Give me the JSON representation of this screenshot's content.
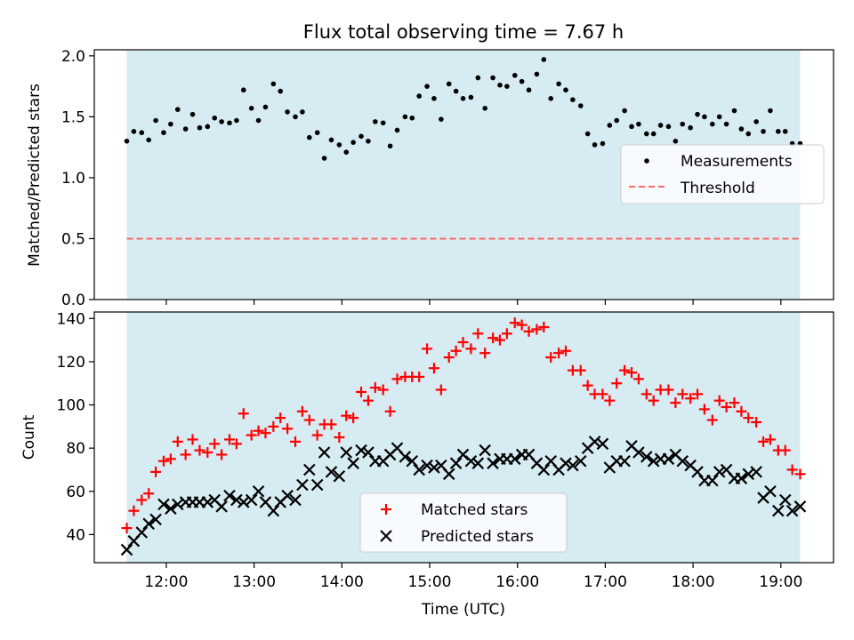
{
  "title": "Flux total observing time = 7.67 h",
  "colors": {
    "band": "#add8e6",
    "measurements": "#000000",
    "threshold": "#ff6666",
    "matched": "#ff0000",
    "predicted": "#000000"
  },
  "x_ticks": [
    "12:00",
    "13:00",
    "14:00",
    "15:00",
    "16:00",
    "17:00",
    "18:00",
    "19:00"
  ],
  "xlabel": "Time (UTC)",
  "chart_data": [
    {
      "type": "scatter",
      "ylabel": "Matched/Predicted stars",
      "xlim_hours": [
        11.18,
        19.6
      ],
      "ylim": [
        0,
        2.05
      ],
      "y_ticks": [
        "0.0",
        "0.5",
        "1.0",
        "1.5",
        "2.0"
      ],
      "legend_position": "right",
      "observing_band_hours": [
        11.55,
        19.22
      ],
      "threshold": 0.5,
      "series": [
        {
          "name": "Measurements",
          "marker": "dot",
          "x": [
            11.55,
            11.63,
            11.72,
            11.8,
            11.88,
            11.97,
            12.05,
            12.13,
            12.22,
            12.3,
            12.38,
            12.47,
            12.55,
            12.63,
            12.72,
            12.8,
            12.88,
            12.97,
            13.05,
            13.13,
            13.22,
            13.3,
            13.38,
            13.47,
            13.55,
            13.63,
            13.72,
            13.8,
            13.88,
            13.97,
            14.05,
            14.13,
            14.22,
            14.3,
            14.38,
            14.47,
            14.55,
            14.63,
            14.72,
            14.8,
            14.88,
            14.97,
            15.05,
            15.13,
            15.22,
            15.3,
            15.38,
            15.47,
            15.55,
            15.63,
            15.72,
            15.8,
            15.88,
            15.97,
            16.05,
            16.13,
            16.22,
            16.3,
            16.38,
            16.47,
            16.55,
            16.63,
            16.72,
            16.8,
            16.88,
            16.97,
            17.05,
            17.13,
            17.22,
            17.3,
            17.38,
            17.47,
            17.55,
            17.63,
            17.72,
            17.8,
            17.88,
            17.97,
            18.05,
            18.13,
            18.22,
            18.3,
            18.38,
            18.47,
            18.55,
            18.63,
            18.72,
            18.8,
            18.88,
            18.97,
            19.05,
            19.13,
            19.22
          ],
          "y": [
            1.3,
            1.38,
            1.37,
            1.31,
            1.47,
            1.37,
            1.44,
            1.56,
            1.4,
            1.52,
            1.41,
            1.42,
            1.49,
            1.46,
            1.45,
            1.47,
            1.72,
            1.57,
            1.47,
            1.58,
            1.77,
            1.71,
            1.54,
            1.5,
            1.54,
            1.33,
            1.37,
            1.16,
            1.31,
            1.27,
            1.21,
            1.29,
            1.34,
            1.3,
            1.46,
            1.45,
            1.26,
            1.39,
            1.5,
            1.49,
            1.67,
            1.75,
            1.65,
            1.48,
            1.77,
            1.71,
            1.65,
            1.66,
            1.82,
            1.57,
            1.82,
            1.76,
            1.75,
            1.84,
            1.79,
            1.72,
            1.85,
            1.97,
            1.65,
            1.77,
            1.72,
            1.64,
            1.59,
            1.36,
            1.27,
            1.28,
            1.43,
            1.47,
            1.55,
            1.42,
            1.44,
            1.36,
            1.36,
            1.43,
            1.42,
            1.3,
            1.44,
            1.41,
            1.52,
            1.5,
            1.44,
            1.5,
            1.44,
            1.55,
            1.4,
            1.36,
            1.46,
            1.38,
            1.55,
            1.38,
            1.38,
            1.28,
            1.28
          ]
        },
        {
          "name": "Threshold",
          "style": "dashed"
        }
      ]
    },
    {
      "type": "scatter",
      "ylabel": "Count",
      "xlim_hours": [
        11.18,
        19.6
      ],
      "ylim": [
        27,
        143
      ],
      "y_ticks": [
        "40",
        "60",
        "80",
        "100",
        "120",
        "140"
      ],
      "legend_position": "bottom-center",
      "observing_band_hours": [
        11.55,
        19.22
      ],
      "series": [
        {
          "name": "Matched stars",
          "marker": "plus",
          "x": [
            11.55,
            11.63,
            11.72,
            11.8,
            11.88,
            11.97,
            12.05,
            12.13,
            12.22,
            12.3,
            12.38,
            12.47,
            12.55,
            12.63,
            12.72,
            12.8,
            12.88,
            12.97,
            13.05,
            13.13,
            13.22,
            13.3,
            13.38,
            13.47,
            13.55,
            13.63,
            13.72,
            13.8,
            13.88,
            13.97,
            14.05,
            14.13,
            14.22,
            14.3,
            14.38,
            14.47,
            14.55,
            14.63,
            14.72,
            14.8,
            14.88,
            14.97,
            15.05,
            15.13,
            15.22,
            15.3,
            15.38,
            15.47,
            15.55,
            15.63,
            15.72,
            15.8,
            15.88,
            15.97,
            16.05,
            16.13,
            16.22,
            16.3,
            16.38,
            16.47,
            16.55,
            16.63,
            16.72,
            16.8,
            16.88,
            16.97,
            17.05,
            17.13,
            17.22,
            17.3,
            17.38,
            17.47,
            17.55,
            17.63,
            17.72,
            17.8,
            17.88,
            17.97,
            18.05,
            18.13,
            18.22,
            18.3,
            18.38,
            18.47,
            18.55,
            18.63,
            18.72,
            18.8,
            18.88,
            18.97,
            19.05,
            19.13,
            19.22
          ],
          "y": [
            43,
            51,
            56,
            59,
            69,
            74,
            75,
            83,
            77,
            84,
            79,
            78,
            82,
            77,
            84,
            82,
            96,
            86,
            88,
            87,
            90,
            94,
            89,
            83,
            97,
            93,
            86,
            91,
            91,
            85,
            95,
            94,
            106,
            102,
            108,
            107,
            97,
            112,
            113,
            113,
            113,
            126,
            117,
            107,
            122,
            125,
            129,
            126,
            133,
            124,
            131,
            130,
            133,
            138,
            137,
            134,
            135,
            136,
            122,
            124,
            125,
            116,
            116,
            109,
            105,
            105,
            102,
            110,
            116,
            115,
            112,
            105,
            102,
            107,
            107,
            101,
            105,
            103,
            105,
            98,
            93,
            102,
            99,
            101,
            97,
            94,
            92,
            83,
            84,
            79,
            79,
            70,
            68
          ]
        },
        {
          "name": "Predicted stars",
          "marker": "x",
          "x": [
            11.55,
            11.63,
            11.72,
            11.8,
            11.88,
            11.97,
            12.05,
            12.13,
            12.22,
            12.3,
            12.38,
            12.47,
            12.55,
            12.63,
            12.72,
            12.8,
            12.88,
            12.97,
            13.05,
            13.13,
            13.22,
            13.3,
            13.38,
            13.47,
            13.55,
            13.63,
            13.72,
            13.8,
            13.88,
            13.97,
            14.05,
            14.13,
            14.22,
            14.3,
            14.38,
            14.47,
            14.55,
            14.63,
            14.72,
            14.8,
            14.88,
            14.97,
            15.05,
            15.13,
            15.22,
            15.3,
            15.38,
            15.47,
            15.55,
            15.63,
            15.72,
            15.8,
            15.88,
            15.97,
            16.05,
            16.13,
            16.22,
            16.3,
            16.38,
            16.47,
            16.55,
            16.63,
            16.72,
            16.8,
            16.88,
            16.97,
            17.05,
            17.13,
            17.22,
            17.3,
            17.38,
            17.47,
            17.55,
            17.63,
            17.72,
            17.8,
            17.88,
            17.97,
            18.05,
            18.13,
            18.22,
            18.3,
            18.38,
            18.47,
            18.55,
            18.63,
            18.72,
            18.8,
            18.88,
            18.97,
            19.05,
            19.13,
            19.22
          ],
          "y": [
            33,
            37,
            41,
            45,
            47,
            54,
            52,
            54,
            55,
            55,
            55,
            55,
            56,
            53,
            58,
            56,
            55,
            56,
            60,
            55,
            51,
            55,
            58,
            56,
            63,
            70,
            63,
            78,
            69,
            67,
            78,
            73,
            79,
            78,
            74,
            74,
            77,
            80,
            76,
            74,
            70,
            72,
            71,
            72,
            68,
            73,
            77,
            74,
            73,
            79,
            73,
            75,
            75,
            75,
            77,
            77,
            73,
            70,
            74,
            70,
            73,
            72,
            74,
            80,
            83,
            82,
            71,
            74,
            74,
            81,
            78,
            76,
            74,
            75,
            75,
            77,
            74,
            72,
            69,
            65,
            65,
            69,
            70,
            66,
            66,
            68,
            69,
            57,
            60,
            51,
            56,
            51,
            53
          ]
        }
      ]
    }
  ]
}
